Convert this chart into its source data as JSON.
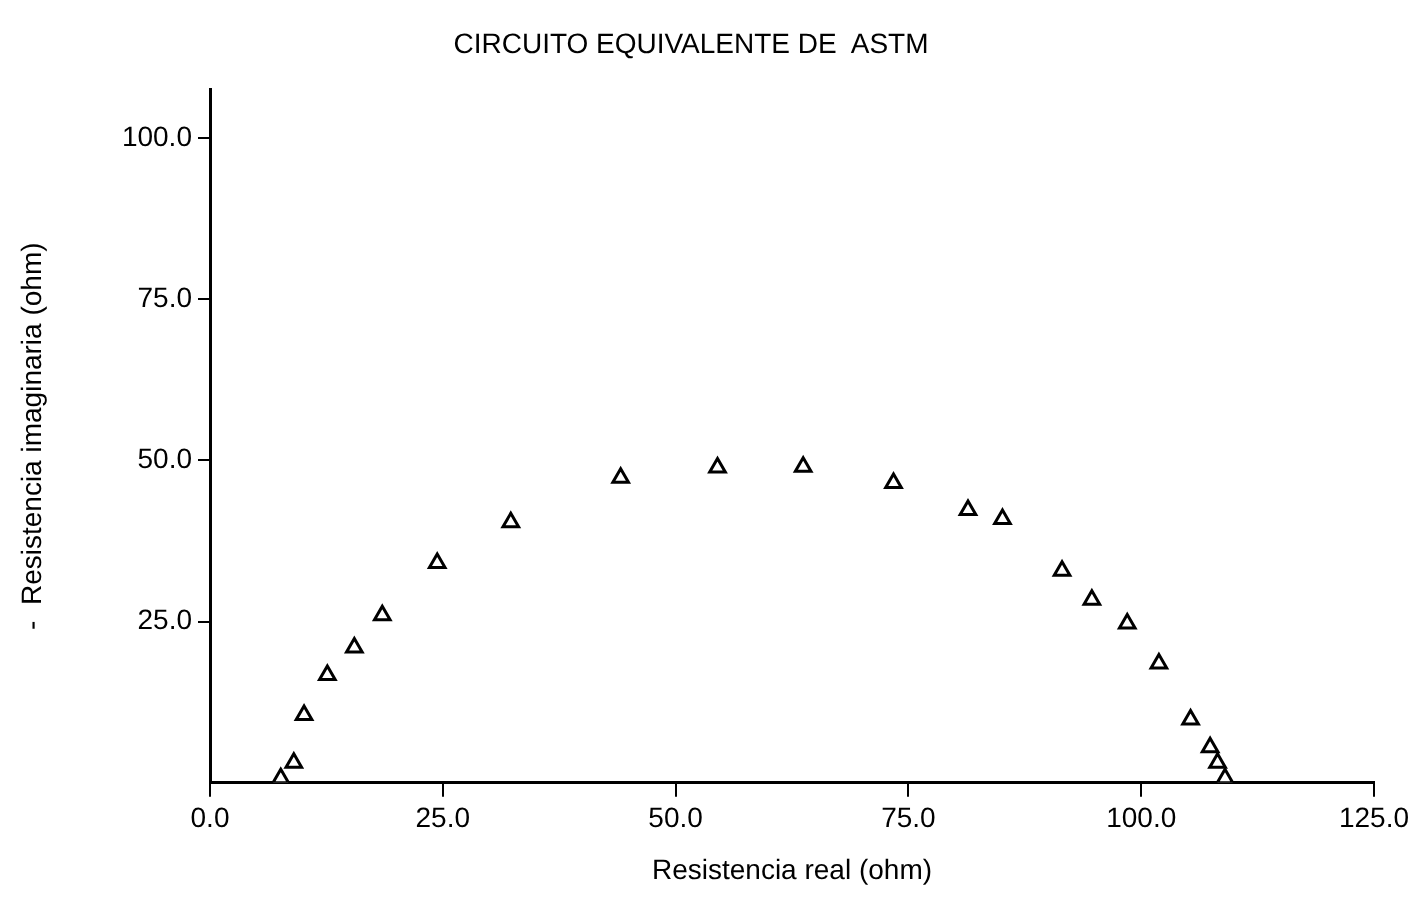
{
  "chart_data": {
    "type": "scatter",
    "title": "CIRCUITO EQUIVALENTE DE  ASTM",
    "xlabel": "Resistencia real (ohm)",
    "ylabel": "-  Resistencia imaginaria (ohm)",
    "x": [
      7.6,
      9.0,
      10.1,
      12.6,
      15.5,
      18.5,
      24.4,
      32.3,
      44.1,
      54.5,
      63.7,
      73.4,
      81.4,
      85.1,
      91.5,
      94.7,
      98.5,
      101.9,
      105.3,
      107.4,
      108.2,
      109.0
    ],
    "series": [
      {
        "color": "#000000",
        "values": [
          0.7,
          3.1,
          10.5,
          16.7,
          21.0,
          26.0,
          34.1,
          40.4,
          47.3,
          48.9,
          49.0,
          46.5,
          42.3,
          40.9,
          32.9,
          28.4,
          24.7,
          18.5,
          9.8,
          5.5,
          3.1,
          0.7
        ]
      }
    ],
    "xlim": [
      0,
      125
    ],
    "ylim": [
      0,
      107.5
    ],
    "xticks": [
      {
        "value": 0,
        "label": "0.0"
      },
      {
        "value": 25,
        "label": "25.0"
      },
      {
        "value": 50,
        "label": "50.0"
      },
      {
        "value": 75,
        "label": "75.0"
      },
      {
        "value": 100,
        "label": "100.0"
      },
      {
        "value": 125,
        "label": "125.0"
      }
    ],
    "yticks": [
      {
        "value": 25,
        "label": "25.0"
      },
      {
        "value": 50,
        "label": "50.0"
      },
      {
        "value": 75,
        "label": "75.0"
      },
      {
        "value": 100,
        "label": "100.0"
      }
    ],
    "grid": false,
    "legend": false,
    "marker": "triangle"
  }
}
